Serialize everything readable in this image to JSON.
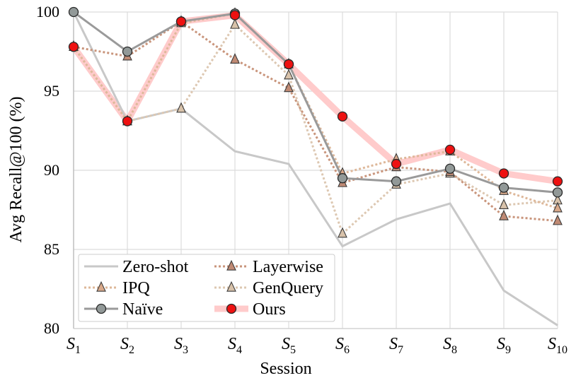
{
  "chart_data": {
    "type": "line",
    "title": "",
    "xlabel": "Session",
    "ylabel": "Avg Recall@100 (%)",
    "ylim": [
      80,
      100
    ],
    "yticks": [
      80,
      85,
      90,
      95,
      100
    ],
    "grid": true,
    "legend_position": "bottom-left",
    "categories": [
      {
        "main": "S",
        "sub": "1"
      },
      {
        "main": "S",
        "sub": "2"
      },
      {
        "main": "S",
        "sub": "3"
      },
      {
        "main": "S",
        "sub": "4"
      },
      {
        "main": "S",
        "sub": "5"
      },
      {
        "main": "S",
        "sub": "6"
      },
      {
        "main": "S",
        "sub": "7"
      },
      {
        "main": "S",
        "sub": "8"
      },
      {
        "main": "S",
        "sub": "9"
      },
      {
        "main": "S",
        "sub": "10"
      }
    ],
    "series": [
      {
        "name": "Zero-shot",
        "key": "zero-shot",
        "values": [
          100.0,
          93.1,
          93.9,
          91.2,
          90.4,
          85.2,
          86.9,
          87.9,
          82.4,
          80.2
        ],
        "color": "#c8c8c8",
        "style": "solid",
        "marker": "none"
      },
      {
        "name": "IPQ",
        "key": "ipq",
        "values": [
          97.8,
          93.1,
          99.3,
          99.9,
          96.7,
          89.8,
          90.7,
          91.2,
          88.7,
          87.6
        ],
        "color": "#deb89a",
        "style": "dotted",
        "marker": "triangle",
        "marker_fill": "#d9a98a"
      },
      {
        "name": "Naïve",
        "key": "naive",
        "values": [
          100.0,
          97.5,
          99.4,
          99.9,
          96.7,
          89.5,
          89.3,
          90.1,
          88.9,
          88.6
        ],
        "color": "#9a9a9a",
        "style": "solid",
        "marker": "circle",
        "marker_fill": "#929998"
      },
      {
        "name": "Layerwise",
        "key": "layerwise",
        "values": [
          97.8,
          97.2,
          99.4,
          97.0,
          95.2,
          89.2,
          90.2,
          89.9,
          87.1,
          86.8
        ],
        "color": "#c9957c",
        "style": "dotted",
        "marker": "triangle",
        "marker_fill": "#c08a74"
      },
      {
        "name": "GenQuery",
        "key": "genquery",
        "values": [
          97.8,
          93.1,
          93.9,
          99.2,
          96.0,
          86.0,
          89.1,
          89.8,
          87.8,
          88.1
        ],
        "color": "#ddc8b2",
        "style": "dotted",
        "marker": "triangle",
        "marker_fill": "#d8c2aa"
      },
      {
        "name": "Ours",
        "key": "ours",
        "values": [
          97.8,
          93.1,
          99.4,
          99.8,
          96.7,
          93.4,
          90.4,
          91.3,
          89.8,
          89.3
        ],
        "color": "#ffc8c8",
        "style": "thick",
        "marker": "circle",
        "marker_fill": "#ee1111"
      }
    ],
    "legend_order": [
      "zero-shot",
      "layerwise",
      "ipq",
      "genquery",
      "naive",
      "ours"
    ]
  }
}
